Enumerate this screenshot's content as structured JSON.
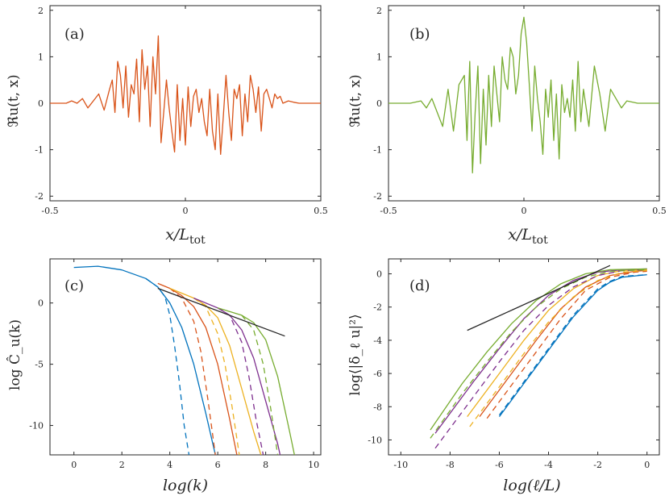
{
  "chart_data": [
    {
      "id": "a",
      "type": "line",
      "panel_label": "(a)",
      "xlabel": "x/L_tot",
      "xlabel_parts": {
        "main": "x/L",
        "sub": "tot"
      },
      "ylabel": "ℜu(t, x)",
      "xlim": [
        -0.5,
        0.5
      ],
      "ylim": [
        -2.1,
        2.1
      ],
      "xticks": [
        -0.5,
        0,
        0.5
      ],
      "xtick_labels": [
        "-0.5",
        "0",
        "0.5"
      ],
      "yticks": [
        -2,
        -1,
        0,
        1,
        2
      ],
      "ytick_labels": [
        "-2",
        "-1",
        "0",
        "1",
        "2"
      ],
      "series": [
        {
          "name": "signal",
          "color": "#D95319",
          "x": [
            -0.5,
            -0.44,
            -0.42,
            -0.4,
            -0.38,
            -0.36,
            -0.34,
            -0.32,
            -0.3,
            -0.28,
            -0.27,
            -0.26,
            -0.25,
            -0.24,
            -0.23,
            -0.22,
            -0.21,
            -0.2,
            -0.19,
            -0.18,
            -0.17,
            -0.16,
            -0.15,
            -0.14,
            -0.13,
            -0.12,
            -0.11,
            -0.1,
            -0.09,
            -0.08,
            -0.07,
            -0.06,
            -0.05,
            -0.04,
            -0.03,
            -0.02,
            -0.01,
            0.0,
            0.01,
            0.02,
            0.03,
            0.04,
            0.05,
            0.06,
            0.07,
            0.08,
            0.09,
            0.1,
            0.11,
            0.12,
            0.13,
            0.14,
            0.15,
            0.16,
            0.17,
            0.18,
            0.19,
            0.2,
            0.21,
            0.22,
            0.23,
            0.24,
            0.25,
            0.26,
            0.27,
            0.28,
            0.29,
            0.3,
            0.31,
            0.32,
            0.33,
            0.34,
            0.35,
            0.36,
            0.38,
            0.4,
            0.42,
            0.44,
            0.5
          ],
          "values": [
            0,
            0,
            0.05,
            0,
            0.1,
            -0.1,
            0.05,
            0.2,
            -0.15,
            0.3,
            0.5,
            -0.2,
            0.9,
            0.6,
            -0.1,
            0.8,
            -0.3,
            0.4,
            0.2,
            0.95,
            -0.4,
            1.15,
            0.3,
            0.8,
            -0.5,
            1.0,
            0.2,
            1.45,
            -0.85,
            -0.2,
            0.5,
            -0.1,
            -0.6,
            -1.05,
            0.4,
            -0.8,
            0.1,
            -0.9,
            0.35,
            -0.5,
            0.15,
            0.3,
            -0.2,
            0.1,
            -0.4,
            -0.7,
            0.3,
            -0.6,
            -1.0,
            0.2,
            -1.1,
            -0.3,
            0.6,
            -0.2,
            -0.8,
            0.3,
            0.1,
            0.4,
            -0.7,
            0.2,
            -0.4,
            0.6,
            0.3,
            -0.2,
            0.35,
            -0.6,
            0.2,
            0.3,
            0.1,
            -0.1,
            0.2,
            0.1,
            0.15,
            0.0,
            0.05,
            0.02,
            0.0,
            0.0,
            0
          ]
        }
      ]
    },
    {
      "id": "b",
      "type": "line",
      "panel_label": "(b)",
      "xlabel": "x/L_tot",
      "xlabel_parts": {
        "main": "x/L",
        "sub": "tot"
      },
      "ylabel": "ℜu(t, x)",
      "xlim": [
        -0.5,
        0.5
      ],
      "ylim": [
        -2.1,
        2.1
      ],
      "xticks": [
        -0.5,
        0,
        0.5
      ],
      "xtick_labels": [
        "-0.5",
        "0",
        "0.5"
      ],
      "yticks": [
        -2,
        -1,
        0,
        1,
        2
      ],
      "ytick_labels": [
        "-2",
        "-1",
        "0",
        "1",
        "2"
      ],
      "series": [
        {
          "name": "signal",
          "color": "#77AC30",
          "x": [
            -0.5,
            -0.42,
            -0.38,
            -0.36,
            -0.34,
            -0.32,
            -0.3,
            -0.28,
            -0.26,
            -0.24,
            -0.22,
            -0.21,
            -0.2,
            -0.19,
            -0.18,
            -0.17,
            -0.16,
            -0.15,
            -0.14,
            -0.13,
            -0.12,
            -0.11,
            -0.1,
            -0.09,
            -0.08,
            -0.07,
            -0.06,
            -0.05,
            -0.04,
            -0.03,
            -0.02,
            -0.01,
            0.0,
            0.01,
            0.02,
            0.03,
            0.04,
            0.05,
            0.06,
            0.07,
            0.08,
            0.09,
            0.1,
            0.11,
            0.12,
            0.13,
            0.14,
            0.15,
            0.16,
            0.17,
            0.18,
            0.19,
            0.2,
            0.21,
            0.22,
            0.24,
            0.26,
            0.28,
            0.3,
            0.32,
            0.34,
            0.36,
            0.38,
            0.42,
            0.5
          ],
          "values": [
            0,
            0,
            0.05,
            -0.1,
            0.1,
            -0.2,
            -0.5,
            0.3,
            -0.6,
            0.4,
            0.6,
            -0.8,
            0.9,
            -1.5,
            -0.2,
            0.8,
            -1.3,
            0.3,
            -0.9,
            0.6,
            -0.5,
            0.8,
            0.2,
            -0.4,
            1.0,
            0.5,
            0.3,
            1.2,
            1.0,
            0.2,
            0.6,
            1.5,
            1.85,
            1.3,
            0.4,
            -0.6,
            0.8,
            0.1,
            -0.4,
            -1.1,
            0.3,
            -0.3,
            0.5,
            -0.8,
            0.2,
            -1.2,
            0.4,
            -0.2,
            0.1,
            -0.3,
            0.5,
            -0.6,
            0.9,
            -0.4,
            0.3,
            -0.5,
            0.8,
            0.2,
            -0.6,
            0.3,
            0.1,
            -0.1,
            0.05,
            0.0,
            0
          ]
        }
      ]
    },
    {
      "id": "c",
      "type": "line",
      "panel_label": "(c)",
      "xlabel": "log(k)",
      "ylabel": "log Ĉ_u(k)",
      "xlim": [
        -1,
        10.3
      ],
      "ylim": [
        -12.4,
        3.6
      ],
      "xticks": [
        0,
        2,
        4,
        6,
        8,
        10
      ],
      "xtick_labels": [
        "0",
        "2",
        "4",
        "6",
        "8",
        "10"
      ],
      "yticks": [
        0,
        -5,
        -10
      ],
      "ytick_labels": [
        "0",
        "-5",
        "-10"
      ],
      "series": [
        {
          "name": "blue-solid",
          "color": "#0072BD",
          "dash": false,
          "x": [
            0,
            1,
            2,
            3,
            3.5,
            4,
            4.5,
            5,
            5.5,
            5.9
          ],
          "values": [
            2.9,
            3.0,
            2.7,
            2.0,
            1.3,
            0.0,
            -2.0,
            -5.0,
            -9.0,
            -12.4
          ]
        },
        {
          "name": "blue-dashed",
          "color": "#0072BD",
          "dash": true,
          "x": [
            3,
            3.5,
            3.8,
            4.0,
            4.2,
            4.4,
            4.6,
            4.8
          ],
          "values": [
            2.0,
            1.3,
            0.5,
            -1.0,
            -3.5,
            -6.5,
            -10.0,
            -12.4
          ]
        },
        {
          "name": "red-solid",
          "color": "#D95319",
          "dash": false,
          "x": [
            3.5,
            4,
            4.5,
            5,
            5.5,
            6,
            6.5,
            6.8
          ],
          "values": [
            1.6,
            1.2,
            0.6,
            -0.3,
            -2.0,
            -5.0,
            -9.5,
            -12.4
          ]
        },
        {
          "name": "red-dashed",
          "color": "#D95319",
          "dash": true,
          "x": [
            4,
            4.5,
            5,
            5.3,
            5.6,
            5.9
          ],
          "values": [
            1.2,
            0.4,
            -1.5,
            -4.0,
            -8.0,
            -12.4
          ]
        },
        {
          "name": "yellow-solid",
          "color": "#EDB120",
          "dash": false,
          "x": [
            4,
            5,
            5.5,
            6,
            6.5,
            7,
            7.5,
            7.8
          ],
          "values": [
            1.2,
            0.4,
            -0.2,
            -1.2,
            -3.5,
            -7.0,
            -10.5,
            -12.4
          ]
        },
        {
          "name": "yellow-dashed",
          "color": "#EDB120",
          "dash": true,
          "x": [
            5,
            5.5,
            6,
            6.3,
            6.6,
            6.9
          ],
          "values": [
            0.4,
            -0.3,
            -2.5,
            -5.0,
            -8.5,
            -12.4
          ]
        },
        {
          "name": "purple-solid",
          "color": "#7E2F8E",
          "dash": false,
          "x": [
            5,
            6,
            6.5,
            7,
            7.5,
            8,
            8.5,
            8.6
          ],
          "values": [
            0.4,
            -0.4,
            -1.0,
            -2.2,
            -4.5,
            -8.0,
            -11.5,
            -12.4
          ]
        },
        {
          "name": "purple-dashed",
          "color": "#7E2F8E",
          "dash": true,
          "x": [
            6,
            6.5,
            7,
            7.3,
            7.6,
            7.9
          ],
          "values": [
            -0.4,
            -1.0,
            -3.2,
            -6.0,
            -9.5,
            -12.4
          ]
        },
        {
          "name": "green-solid",
          "color": "#77AC30",
          "dash": false,
          "x": [
            6,
            7,
            7.5,
            8,
            8.5,
            9.0,
            9.2
          ],
          "values": [
            -0.4,
            -1.0,
            -1.6,
            -3.0,
            -6.0,
            -10.5,
            -12.4
          ]
        },
        {
          "name": "green-dashed",
          "color": "#77AC30",
          "dash": true,
          "x": [
            7,
            7.5,
            7.9,
            8.2,
            8.5
          ],
          "values": [
            -1.0,
            -2.2,
            -5.0,
            -8.5,
            -12.4
          ]
        },
        {
          "name": "reference",
          "color": "#262626",
          "dash": false,
          "x": [
            3.5,
            8.8
          ],
          "values": [
            1.2,
            -2.7
          ]
        }
      ]
    },
    {
      "id": "d",
      "type": "line",
      "panel_label": "(d)",
      "xlabel": "log(ℓ/L)",
      "ylabel": "log⟨|δ_ℓ u|²⟩",
      "xlim": [
        -10.5,
        0.5
      ],
      "ylim": [
        -10.9,
        0.9
      ],
      "xticks": [
        -10,
        -8,
        -6,
        -4,
        -2,
        0
      ],
      "xtick_labels": [
        "-10",
        "-8",
        "-6",
        "-4",
        "-2",
        "0"
      ],
      "yticks": [
        0,
        -2,
        -4,
        -6,
        -8,
        -10
      ],
      "ytick_labels": [
        "0",
        "-2",
        "-4",
        "-6",
        "-8",
        "-10"
      ],
      "series": [
        {
          "name": "blue-solid",
          "color": "#0072BD",
          "dash": false,
          "x": [
            -6,
            -5,
            -4,
            -3,
            -2,
            -1.5,
            -1,
            0
          ],
          "values": [
            -8.6,
            -6.6,
            -4.6,
            -2.6,
            -1.0,
            -0.5,
            -0.2,
            -0.05
          ]
        },
        {
          "name": "blue-dashed",
          "color": "#0072BD",
          "dash": true,
          "x": [
            -6,
            -5,
            -4,
            -3,
            -2,
            -1.5,
            -1,
            0
          ],
          "values": [
            -8.5,
            -6.5,
            -4.5,
            -2.5,
            -0.9,
            -0.45,
            -0.15,
            -0.05
          ]
        },
        {
          "name": "red-solid",
          "color": "#D95319",
          "dash": false,
          "x": [
            -6.8,
            -5.5,
            -4.5,
            -3.5,
            -2.5,
            -1.5,
            -0.5,
            0
          ],
          "values": [
            -8.6,
            -6.0,
            -4.0,
            -2.1,
            -0.8,
            -0.1,
            0.15,
            0.2
          ]
        },
        {
          "name": "red-dashed",
          "color": "#D95319",
          "dash": true,
          "x": [
            -6.5,
            -5.5,
            -4.5,
            -3.5,
            -2.5,
            -1.5,
            -0.5,
            0
          ],
          "values": [
            -8.7,
            -6.7,
            -4.7,
            -2.7,
            -1.0,
            -0.2,
            0.1,
            0.15
          ]
        },
        {
          "name": "yellow-solid",
          "color": "#EDB120",
          "dash": false,
          "x": [
            -7.3,
            -6,
            -5,
            -4,
            -3,
            -2,
            -1,
            0
          ],
          "values": [
            -8.6,
            -6.0,
            -4.0,
            -2.2,
            -0.9,
            -0.1,
            0.2,
            0.25
          ]
        },
        {
          "name": "yellow-dashed",
          "color": "#EDB120",
          "dash": true,
          "x": [
            -7.2,
            -6,
            -5,
            -4,
            -3,
            -2,
            -1,
            0
          ],
          "values": [
            -9.2,
            -6.8,
            -4.8,
            -2.9,
            -1.4,
            -0.4,
            0.1,
            0.2
          ]
        },
        {
          "name": "purple-solid",
          "color": "#7E2F8E",
          "dash": false,
          "x": [
            -8.6,
            -7,
            -6,
            -5,
            -4,
            -3,
            -2,
            -1,
            0
          ],
          "values": [
            -9.6,
            -6.4,
            -4.5,
            -2.7,
            -1.3,
            -0.4,
            0.1,
            0.25,
            0.3
          ]
        },
        {
          "name": "purple-dashed",
          "color": "#7E2F8E",
          "dash": true,
          "x": [
            -8.6,
            -7,
            -6,
            -5,
            -4,
            -3,
            -2,
            -1,
            0
          ],
          "values": [
            -10.5,
            -7.3,
            -5.3,
            -3.4,
            -1.9,
            -0.8,
            -0.1,
            0.2,
            0.25
          ]
        },
        {
          "name": "green-solid",
          "color": "#77AC30",
          "dash": false,
          "x": [
            -8.8,
            -7.5,
            -6.5,
            -5.5,
            -4.5,
            -3.5,
            -2.5,
            -1.5,
            0
          ],
          "values": [
            -9.4,
            -6.6,
            -4.7,
            -3.0,
            -1.6,
            -0.6,
            0.0,
            0.25,
            0.3
          ]
        },
        {
          "name": "green-dashed",
          "color": "#77AC30",
          "dash": true,
          "x": [
            -8.8,
            -7.5,
            -6.5,
            -5.5,
            -4.5,
            -3.5,
            -2.5,
            -1.5,
            0
          ],
          "values": [
            -9.9,
            -7.2,
            -5.3,
            -3.5,
            -2.0,
            -0.9,
            -0.2,
            0.15,
            0.25
          ]
        },
        {
          "name": "reference",
          "color": "#262626",
          "dash": false,
          "x": [
            -7.3,
            -1.5
          ],
          "values": [
            -3.4,
            0.5
          ]
        }
      ]
    }
  ]
}
